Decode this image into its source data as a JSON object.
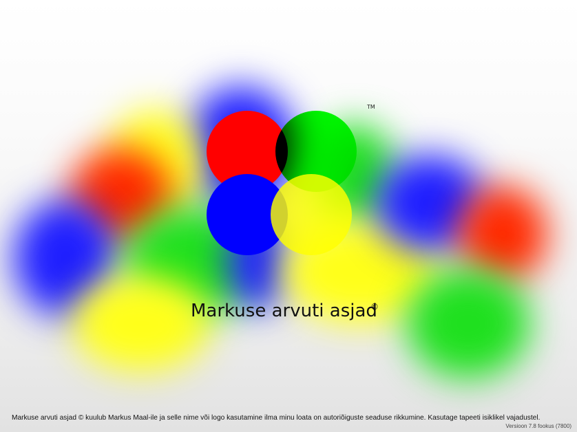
{
  "wallpaper": {
    "trademark": "TM",
    "title": "Markuse arvuti asjad",
    "title_symbol": "©",
    "footer_text": "Markuse arvuti asjad © kuulub Markus Maal-ile ja selle nime või logo kasutamine ilma minu loata on autoriõiguste seaduse rikkumine. Kasutage tapeeti isiklikel vajadustel.",
    "version_text": "Versioon 7.8 fookus  (7800)"
  },
  "colors": {
    "red": "#ff0000",
    "green": "#00ff00",
    "blue": "#0000ff",
    "yellow": "#ffff00"
  },
  "icons": [
    "logo-red-circle",
    "logo-green-circle",
    "logo-blue-circle",
    "logo-yellow-circle"
  ]
}
